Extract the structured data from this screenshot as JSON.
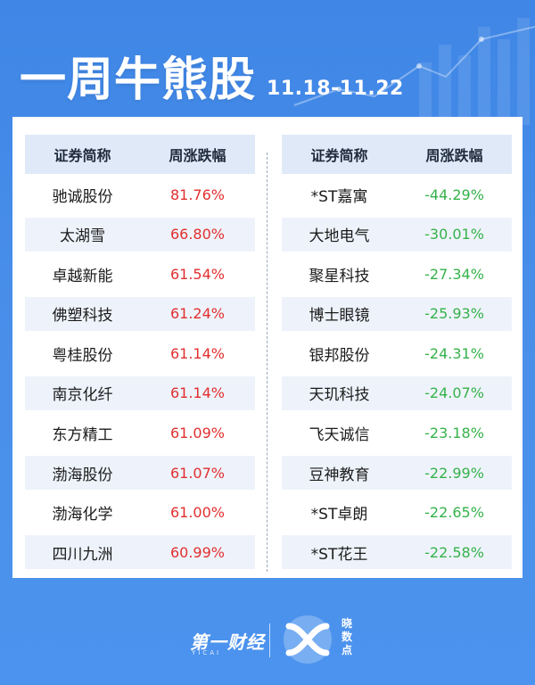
{
  "header": {
    "title": "一周牛熊股",
    "date_range": "11.18-11.22"
  },
  "table_left": {
    "col_name": "证券简称",
    "col_change": "周涨跌幅",
    "rows": [
      {
        "name": "驰诚股份",
        "change": "81.76%"
      },
      {
        "name": "太湖雪",
        "change": "66.80%"
      },
      {
        "name": "卓越新能",
        "change": "61.54%"
      },
      {
        "name": "佛塑科技",
        "change": "61.24%"
      },
      {
        "name": "粤桂股份",
        "change": "61.14%"
      },
      {
        "name": "南京化纤",
        "change": "61.14%"
      },
      {
        "name": "东方精工",
        "change": "61.09%"
      },
      {
        "name": "渤海股份",
        "change": "61.07%"
      },
      {
        "name": "渤海化学",
        "change": "61.00%"
      },
      {
        "name": "四川九洲",
        "change": "60.99%"
      }
    ]
  },
  "table_right": {
    "col_name": "证券简称",
    "col_change": "周涨跌幅",
    "rows": [
      {
        "name": "*ST嘉寓",
        "change": "-44.29%"
      },
      {
        "name": "大地电气",
        "change": "-30.01%"
      },
      {
        "name": "聚星科技",
        "change": "-27.34%"
      },
      {
        "name": "博士眼镜",
        "change": "-25.93%"
      },
      {
        "name": "银邦股份",
        "change": "-24.31%"
      },
      {
        "name": "天玑科技",
        "change": "-24.07%"
      },
      {
        "name": "飞天诚信",
        "change": "-23.18%"
      },
      {
        "name": "豆神教育",
        "change": "-22.99%"
      },
      {
        "name": "*ST卓朗",
        "change": "-22.65%"
      },
      {
        "name": "*ST花王",
        "change": "-22.58%"
      }
    ]
  },
  "footer": {
    "brand_yicai": "第一财经",
    "brand_yicai_sub": "YICAI",
    "brand_xsd": "晓数点"
  },
  "colors": {
    "background": "#4a90ea",
    "up": "#e22f2f",
    "down": "#35b24a",
    "header_row": "#dfe9f8",
    "shaded_row": "#eef3fb"
  }
}
